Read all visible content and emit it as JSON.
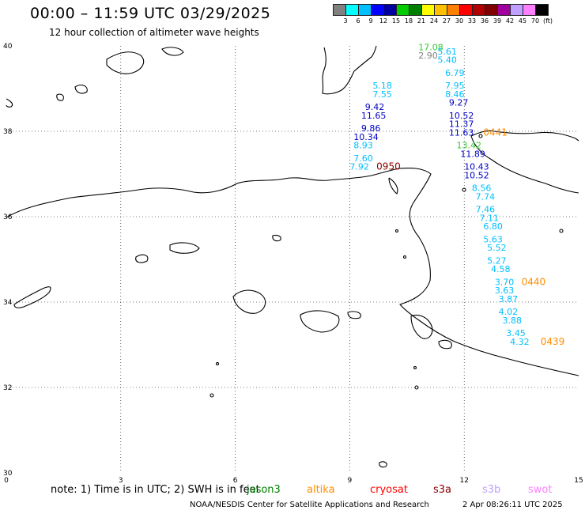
{
  "title": "00:00 – 11:59 UTC 03/29/2025",
  "subtitle": "12 hour collection of altimeter wave heights",
  "legend": {
    "colors": [
      "#808080",
      "#00ffff",
      "#00bfff",
      "#0000ff",
      "#0000a0",
      "#00cc00",
      "#008000",
      "#ffff00",
      "#ffc000",
      "#ff8000",
      "#ff0000",
      "#b00000",
      "#800000",
      "#a000a0",
      "#c0a0ff",
      "#ff80ff",
      "#000000"
    ],
    "ticks": [
      "3",
      "6",
      "9",
      "12",
      "15",
      "18",
      "21",
      "24",
      "27",
      "30",
      "33",
      "36",
      "39",
      "42",
      "45",
      "70",
      "(ft)"
    ]
  },
  "axes": {
    "lon_labels": [
      "0",
      "3",
      "6",
      "9",
      "12",
      "15"
    ],
    "lat_labels": [
      "40",
      "38",
      "36",
      "34",
      "32",
      "30"
    ]
  },
  "note": "note:  1) Time is in UTC;  2) SWH is in feet",
  "satellites": [
    {
      "name": "jason3",
      "color": "#008000"
    },
    {
      "name": "altika",
      "color": "#ff8c00"
    },
    {
      "name": "cryosat",
      "color": "#ff0000"
    },
    {
      "name": "s3a",
      "color": "#8b0000"
    },
    {
      "name": "s3b",
      "color": "#c0a0ff"
    },
    {
      "name": "swot",
      "color": "#ff80ff"
    }
  ],
  "credit": "NOAA/NESDIS Center for Satellite Applications and Research",
  "timestamp": "2 Apr 08:26:11 UTC 2025",
  "tracks": [
    {
      "lon": 10.8,
      "lat": 39.9,
      "value": "17.08",
      "color": "#32cd32"
    },
    {
      "lon": 10.8,
      "lat": 39.7,
      "value": "2.90",
      "color": "#808080"
    },
    {
      "lon": 9.6,
      "lat": 39.0,
      "value": "5.18",
      "color": "#00bfff"
    },
    {
      "lon": 9.6,
      "lat": 38.8,
      "value": "7.55",
      "color": "#00bfff"
    },
    {
      "lon": 9.4,
      "lat": 38.5,
      "value": "9.42",
      "color": "#0000c8"
    },
    {
      "lon": 9.3,
      "lat": 38.3,
      "value": "11.65",
      "color": "#0000c8"
    },
    {
      "lon": 9.3,
      "lat": 38.0,
      "value": "9.86",
      "color": "#0000c8"
    },
    {
      "lon": 9.1,
      "lat": 37.8,
      "value": "10.34",
      "color": "#0000c8"
    },
    {
      "lon": 9.1,
      "lat": 37.6,
      "value": "8.93",
      "color": "#00bfff"
    },
    {
      "lon": 9.1,
      "lat": 37.3,
      "value": "7.60",
      "color": "#00bfff"
    },
    {
      "lon": 9.0,
      "lat": 37.1,
      "value": "7.92",
      "color": "#00bfff"
    },
    {
      "lon": 9.7,
      "lat": 37.1,
      "value": "0950",
      "color": "#8b0000"
    },
    {
      "lon": 11.3,
      "lat": 39.8,
      "value": "5.61",
      "color": "#00bfff"
    },
    {
      "lon": 11.3,
      "lat": 39.6,
      "value": "5.40",
      "color": "#00bfff"
    },
    {
      "lon": 11.5,
      "lat": 39.3,
      "value": "6.79",
      "color": "#00bfff"
    },
    {
      "lon": 11.5,
      "lat": 39.0,
      "value": "7.95",
      "color": "#00bfff"
    },
    {
      "lon": 11.5,
      "lat": 38.8,
      "value": "8.46",
      "color": "#00bfff"
    },
    {
      "lon": 11.6,
      "lat": 38.6,
      "value": "9.27",
      "color": "#0000c8"
    },
    {
      "lon": 11.6,
      "lat": 38.3,
      "value": "10.52",
      "color": "#0000c8"
    },
    {
      "lon": 11.6,
      "lat": 38.1,
      "value": "11.37",
      "color": "#0000c8"
    },
    {
      "lon": 11.6,
      "lat": 37.9,
      "value": "11.63",
      "color": "#0000c8"
    },
    {
      "lon": 12.5,
      "lat": 37.9,
      "value": "0441",
      "color": "#ff8c00"
    },
    {
      "lon": 11.8,
      "lat": 37.6,
      "value": "13.42",
      "color": "#32cd32"
    },
    {
      "lon": 11.9,
      "lat": 37.4,
      "value": "11.89",
      "color": "#0000c8"
    },
    {
      "lon": 12.0,
      "lat": 37.1,
      "value": "10.43",
      "color": "#0000c8"
    },
    {
      "lon": 12.0,
      "lat": 36.9,
      "value": "10.52",
      "color": "#0000c8"
    },
    {
      "lon": 12.2,
      "lat": 36.6,
      "value": "8.56",
      "color": "#00bfff"
    },
    {
      "lon": 12.3,
      "lat": 36.4,
      "value": "7.74",
      "color": "#00bfff"
    },
    {
      "lon": 12.3,
      "lat": 36.1,
      "value": "7.46",
      "color": "#00bfff"
    },
    {
      "lon": 12.4,
      "lat": 35.9,
      "value": "7.11",
      "color": "#00bfff"
    },
    {
      "lon": 12.5,
      "lat": 35.7,
      "value": "6.80",
      "color": "#00bfff"
    },
    {
      "lon": 12.5,
      "lat": 35.4,
      "value": "5.63",
      "color": "#00bfff"
    },
    {
      "lon": 12.6,
      "lat": 35.2,
      "value": "5.52",
      "color": "#00bfff"
    },
    {
      "lon": 12.6,
      "lat": 34.9,
      "value": "5.27",
      "color": "#00bfff"
    },
    {
      "lon": 12.7,
      "lat": 34.7,
      "value": "4.58",
      "color": "#00bfff"
    },
    {
      "lon": 12.8,
      "lat": 34.4,
      "value": "3.70",
      "color": "#00bfff"
    },
    {
      "lon": 13.5,
      "lat": 34.4,
      "value": "0440",
      "color": "#ff8c00"
    },
    {
      "lon": 12.8,
      "lat": 34.2,
      "value": "3.63",
      "color": "#00bfff"
    },
    {
      "lon": 12.9,
      "lat": 34.0,
      "value": "3.87",
      "color": "#00bfff"
    },
    {
      "lon": 12.9,
      "lat": 33.7,
      "value": "4.02",
      "color": "#00bfff"
    },
    {
      "lon": 13.0,
      "lat": 33.5,
      "value": "3.88",
      "color": "#00bfff"
    },
    {
      "lon": 13.1,
      "lat": 33.2,
      "value": "3.45",
      "color": "#00bfff"
    },
    {
      "lon": 13.2,
      "lat": 33.0,
      "value": "4.32",
      "color": "#00bfff"
    },
    {
      "lon": 14.0,
      "lat": 33.0,
      "value": "0439",
      "color": "#ff8c00"
    }
  ]
}
